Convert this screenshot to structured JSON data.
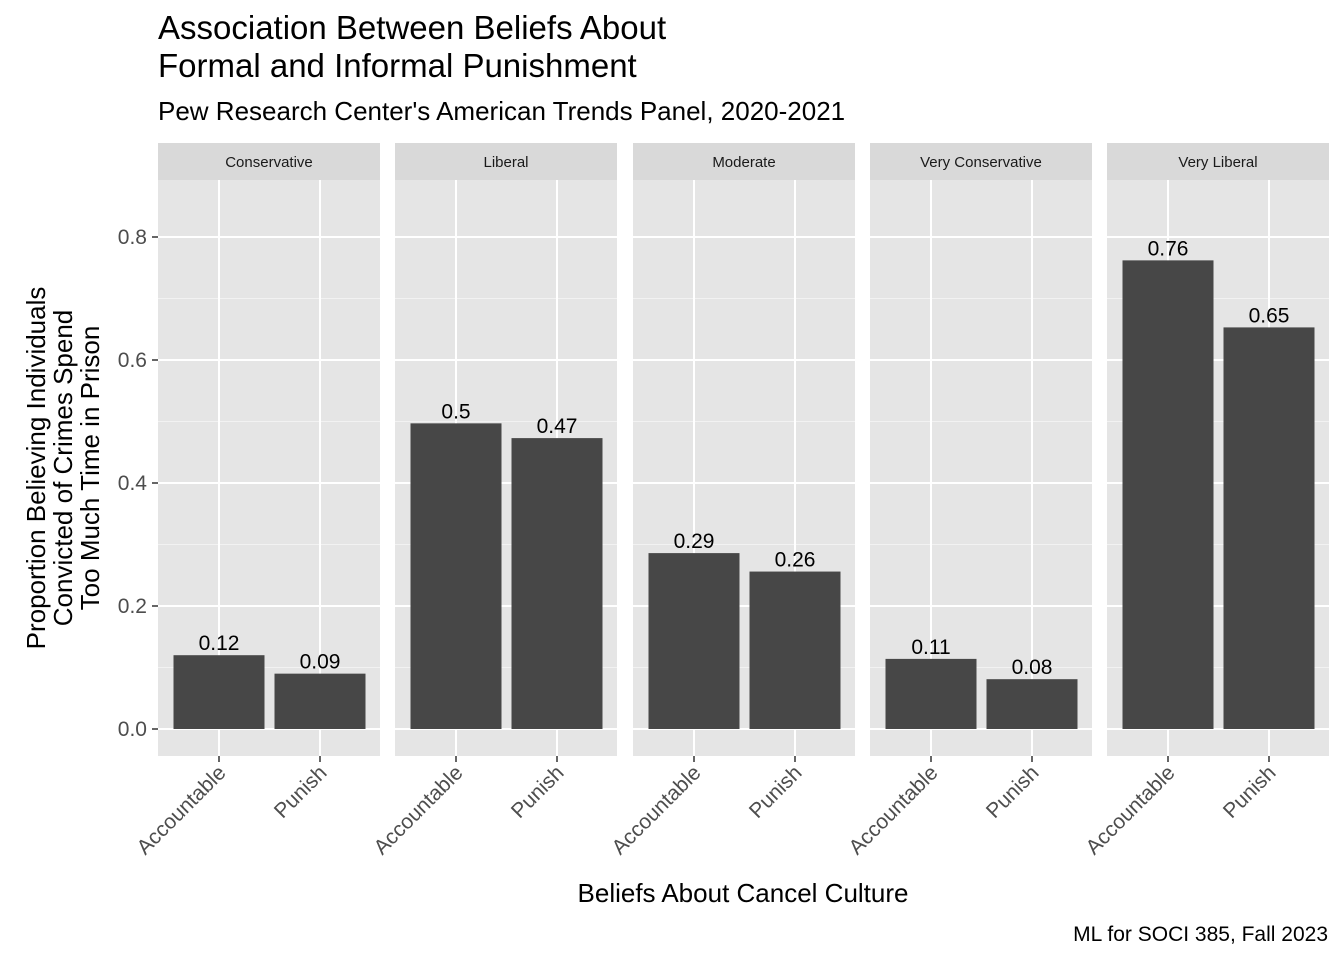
{
  "chart_data": {
    "type": "bar",
    "title_lines": [
      "Association Between Beliefs About",
      "Formal and Informal Punishment"
    ],
    "subtitle": "Pew Research Center's American Trends Panel, 2020-2021",
    "caption": "ML for SOCI 385, Fall 2023",
    "xlabel": "Beliefs About Cancel Culture",
    "ylabel_lines": [
      "Proportion Believing Individuals",
      "Convicted of Crimes Spend",
      "Too Much Time in Prison"
    ],
    "categories": [
      "Accountable",
      "Punish"
    ],
    "ylim": [
      -0.038,
      0.9
    ],
    "y_ticks": [
      0.0,
      0.2,
      0.4,
      0.6,
      0.8
    ],
    "y_tick_labels": [
      "0.0",
      "0.2",
      "0.4",
      "0.6",
      "0.8"
    ],
    "grid": true,
    "bar_color": "#474747",
    "panel_background": "#e5e5e5",
    "strip_background": "#d9d9d9",
    "facets": [
      {
        "name": "Conservative",
        "values": [
          0.12,
          0.09
        ],
        "labels": [
          "0.12",
          "0.09"
        ]
      },
      {
        "name": "Liberal",
        "values": [
          0.497,
          0.473
        ],
        "labels": [
          "0.5",
          "0.47"
        ]
      },
      {
        "name": "Moderate",
        "values": [
          0.286,
          0.256
        ],
        "labels": [
          "0.29",
          "0.26"
        ]
      },
      {
        "name": "Very Conservative",
        "values": [
          0.114,
          0.081
        ],
        "labels": [
          "0.11",
          "0.08"
        ]
      },
      {
        "name": "Very Liberal",
        "values": [
          0.762,
          0.653
        ],
        "labels": [
          "0.76",
          "0.65"
        ]
      }
    ]
  }
}
